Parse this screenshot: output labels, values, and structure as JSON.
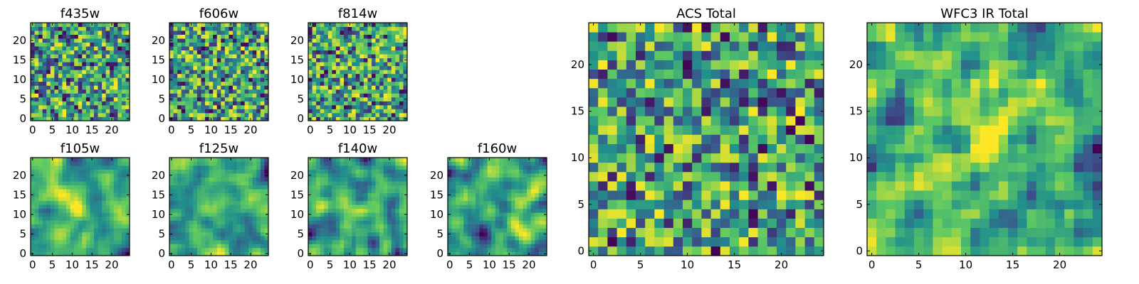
{
  "figure": {
    "description_free": true
  },
  "colormap": [
    "#440154",
    "#3b528b",
    "#21918c",
    "#5ec962",
    "#fde725"
  ],
  "chart_data": [
    {
      "type": "heatmap",
      "title": "f435w",
      "grid": [
        25,
        25
      ],
      "seed": 11,
      "smooth": 0,
      "blob": null,
      "xticks": [
        0,
        5,
        10,
        15,
        20
      ],
      "yticks": [
        0,
        5,
        10,
        15,
        20
      ],
      "xlim": [
        0,
        24
      ],
      "ylim": [
        0,
        24
      ]
    },
    {
      "type": "heatmap",
      "title": "f606w",
      "grid": [
        25,
        25
      ],
      "seed": 23,
      "smooth": 0,
      "blob": null,
      "xticks": [
        0,
        5,
        10,
        15,
        20
      ],
      "yticks": [
        0,
        5,
        10,
        15,
        20
      ],
      "xlim": [
        0,
        24
      ],
      "ylim": [
        0,
        24
      ]
    },
    {
      "type": "heatmap",
      "title": "f814w",
      "grid": [
        25,
        25
      ],
      "seed": 37,
      "smooth": 0,
      "blob": null,
      "xticks": [
        0,
        5,
        10,
        15,
        20
      ],
      "yticks": [
        0,
        5,
        10,
        15,
        20
      ],
      "xlim": [
        0,
        24
      ],
      "ylim": [
        0,
        24
      ]
    },
    {
      "type": "heatmap",
      "title": "f105w",
      "grid": [
        25,
        25
      ],
      "seed": 41,
      "smooth": 2,
      "blob": [
        11,
        12
      ],
      "xticks": [
        0,
        5,
        10,
        15,
        20
      ],
      "yticks": [
        0,
        5,
        10,
        15,
        20
      ],
      "xlim": [
        0,
        24
      ],
      "ylim": [
        0,
        24
      ]
    },
    {
      "type": "heatmap",
      "title": "f125w",
      "grid": [
        25,
        25
      ],
      "seed": 53,
      "smooth": 2,
      "blob": null,
      "xticks": [
        0,
        5,
        10,
        15,
        20
      ],
      "yticks": [
        0,
        5,
        10,
        15,
        20
      ],
      "xlim": [
        0,
        24
      ],
      "ylim": [
        0,
        24
      ]
    },
    {
      "type": "heatmap",
      "title": "f140w",
      "grid": [
        25,
        25
      ],
      "seed": 67,
      "smooth": 2,
      "blob": null,
      "xticks": [
        0,
        5,
        10,
        15,
        20
      ],
      "yticks": [
        0,
        5,
        10,
        15,
        20
      ],
      "xlim": [
        0,
        24
      ],
      "ylim": [
        0,
        24
      ]
    },
    {
      "type": "heatmap",
      "title": "f160w",
      "grid": [
        25,
        25
      ],
      "seed": 79,
      "smooth": 2,
      "blob": null,
      "xticks": [
        0,
        5,
        10,
        15,
        20
      ],
      "yticks": [
        0,
        5,
        10,
        15,
        20
      ],
      "xlim": [
        0,
        24
      ],
      "ylim": [
        0,
        24
      ]
    },
    {
      "type": "heatmap",
      "title": "ACS Total",
      "grid": [
        25,
        25
      ],
      "seed": 97,
      "smooth": 0,
      "blob": null,
      "xticks": [
        0,
        5,
        10,
        15,
        20
      ],
      "yticks": [
        0,
        5,
        10,
        15,
        20
      ],
      "xlim": [
        0,
        24
      ],
      "ylim": [
        0,
        24
      ]
    },
    {
      "type": "heatmap",
      "title": "WFC3 IR Total",
      "grid": [
        25,
        25
      ],
      "seed": 113,
      "smooth": 1,
      "blob": [
        12,
        12
      ],
      "xticks": [
        0,
        5,
        10,
        15,
        20
      ],
      "yticks": [
        0,
        5,
        10,
        15,
        20
      ],
      "xlim": [
        0,
        24
      ],
      "ylim": [
        0,
        24
      ]
    }
  ]
}
